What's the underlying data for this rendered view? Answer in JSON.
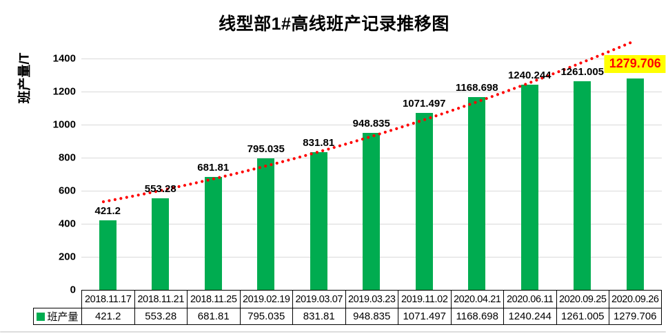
{
  "chart_data": {
    "type": "bar",
    "title": "线型部1#高线班产记录推移图",
    "ylabel": "班产量/T",
    "series": [
      {
        "name": "班产量",
        "values": [
          421.2,
          553.28,
          681.81,
          795.035,
          831.81,
          948.835,
          1071.497,
          1168.698,
          1240.244,
          1261.005,
          1279.706
        ]
      }
    ],
    "categories": [
      "2018.11.17",
      "2018.11.21",
      "2018.11.25",
      "2019.02.19",
      "2019.03.07",
      "2019.03.23",
      "2019.11.02",
      "2020.04.21",
      "2020.06.11",
      "2020.09.25",
      "2020.09.26"
    ],
    "yticks": [
      0,
      200,
      400,
      600,
      800,
      1000,
      1200,
      1400
    ],
    "ylim": [
      0,
      1500
    ],
    "grid": true,
    "legend_position": "bottom-table",
    "data_labels": true,
    "colors": {
      "bar": "#00AC50",
      "trendline": "#FF0000",
      "highlight_background": "#FFFF00",
      "highlight_text": "#FF0000",
      "gridline": "#D9D9D9"
    },
    "trendline": {
      "style": "dotted",
      "color": "#FF0000"
    },
    "highlight_last": {
      "index": 10,
      "background": "#FFFF00",
      "color": "#FF0000"
    }
  }
}
